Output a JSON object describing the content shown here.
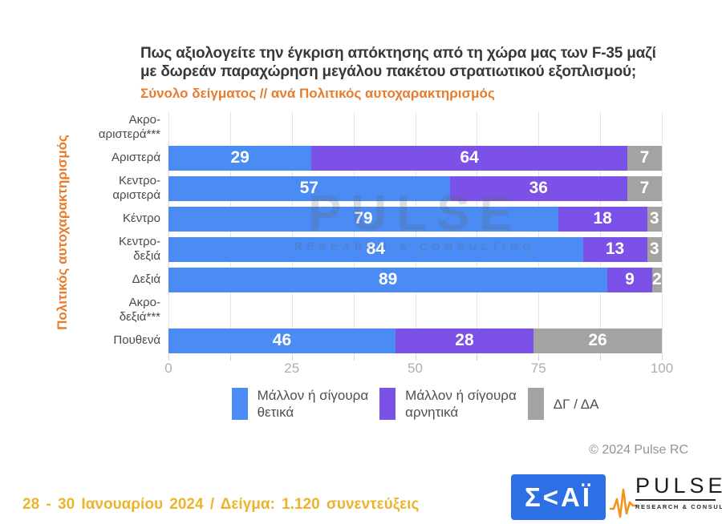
{
  "header": {
    "title_line1": "Πως αξιολογείτε την έγκριση απόκτησης από τη χώρα μας των F-35 μαζί",
    "title_line2": "με δωρεάν παραχώρηση μεγάλου πακέτου στρατιωτικού εξοπλισμού;",
    "subtitle": "Σύνολο δείγματος // ανά Πολιτικός αυτοχαρακτηρισμός"
  },
  "chart_data": {
    "type": "bar",
    "orientation": "horizontal",
    "stacked": true,
    "axis_label": "Πολιτικός αυτοχαρακτηρισμός",
    "categories": [
      [
        "Ακρο-",
        "αριστερά***"
      ],
      [
        "Αριστερά"
      ],
      [
        "Κεντρο-",
        "αριστερά"
      ],
      [
        "Κέντρο"
      ],
      [
        "Κεντρο-",
        "δεξιά"
      ],
      [
        "Δεξιά"
      ],
      [
        "Ακρο-",
        "δεξιά***"
      ],
      [
        "Πουθενά"
      ]
    ],
    "series": [
      {
        "name": "Μάλλον ή σίγουρα θετικά",
        "color": "#4a8bf4",
        "values": [
          null,
          29,
          57,
          79,
          84,
          89,
          null,
          46
        ]
      },
      {
        "name": "Μάλλον ή σίγουρα αρνητικά",
        "color": "#7b51e8",
        "values": [
          null,
          64,
          36,
          18,
          13,
          9,
          null,
          28
        ]
      },
      {
        "name": "ΔΓ / ΔΑ",
        "color": "#a5a3a2",
        "values": [
          null,
          7,
          7,
          3,
          3,
          2,
          null,
          26
        ]
      }
    ],
    "xlim": [
      0,
      100
    ],
    "x_tick_labels": [
      0,
      25,
      50,
      75,
      100
    ],
    "gridline_step": 12.5,
    "grid": true,
    "legend_position": "bottom"
  },
  "legend": [
    {
      "lines": [
        "Μάλλον ή σίγουρα",
        "θετικά"
      ],
      "color": "#4a8bf4"
    },
    {
      "lines": [
        "Μάλλον ή σίγουρα",
        "αρνητικά"
      ],
      "color": "#7b51e8"
    },
    {
      "lines": [
        "ΔΓ / ΔΑ"
      ],
      "color": "#a5a3a2"
    }
  ],
  "watermark": {
    "line1": "PULSE",
    "line2": "RESEARCH & CONSULTING"
  },
  "footer": {
    "copyright": "© 2024 Pulse RC",
    "date_sample": "28 - 30 Ιανουαρίου 2024 / Δείγμα: 1.120 συνεντεύξεις"
  },
  "logos": {
    "skai": {
      "text": "Σ<ΑΪ",
      "bg_color": "#2d6fe4"
    },
    "pulse": {
      "name": "PULSE",
      "tagline": "RESEARCH & CONSULTING",
      "wave_color": "#f0941e"
    }
  },
  "colors": {
    "title": "#3b3834",
    "subtitle": "#e87c2d",
    "category_label": "#4d4843",
    "tick_label": "#b3ada7",
    "gridline": "#e6e3e0",
    "footer_gold": "#ecb42d",
    "copyright": "#8b96a0"
  }
}
